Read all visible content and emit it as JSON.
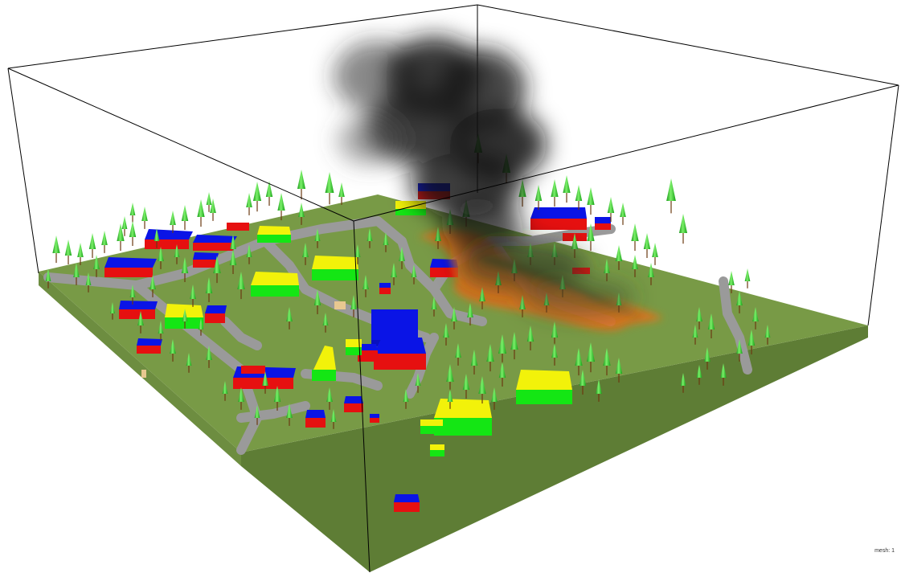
{
  "mesh_label": "mesh: 1",
  "colors": {
    "background": "#ffffff",
    "ground_top": "#789a46",
    "ground_side_left": "#6a8a3c",
    "ground_side_front": "#5f7f36",
    "road": "#9a9a9a",
    "roof_blue": "#0a14e6",
    "wall_red": "#e61010",
    "roof_yellow": "#f2f20a",
    "wall_green": "#14e614",
    "tree_canopy": "#22c822",
    "tree_highlight": "#a8ff80",
    "tree_trunk": "#6b3a10",
    "fire": "#e87018",
    "smoke": "#141414",
    "frame": "#000000"
  }
}
